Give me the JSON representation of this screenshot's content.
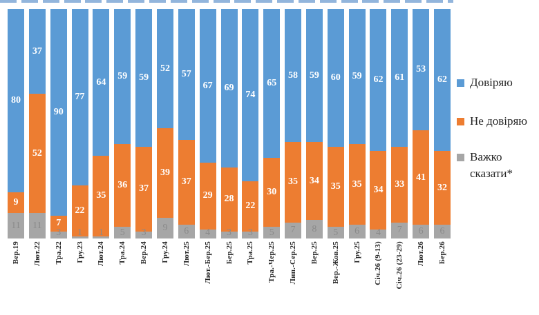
{
  "chart_data": {
    "type": "bar",
    "stacked": true,
    "orientation": "vertical",
    "title": "",
    "xlabel": "",
    "ylabel": "",
    "ylim": [
      0,
      100
    ],
    "grid": false,
    "legend_position": "right",
    "value_labels": "center",
    "categories": [
      "Вер.19",
      "Лют.22",
      "Тра.22",
      "Гру.23",
      "Лют.24",
      "Тра.24",
      "Вер.24",
      "Гру.24",
      "Лют.25",
      "Лют.-Бер.25",
      "Бер.25",
      "Тра.25",
      "Тра.-Чер.25",
      "Лип.-Сер.25",
      "Вер.25",
      "Вер.-Жов.25",
      "Гру.25",
      "Січ.26 (9-13)",
      "Січ.26 (23-29)",
      "Лют.26",
      "Бер.26"
    ],
    "series": [
      {
        "name": "Довіряю",
        "color": "#5B9BD5",
        "label_color": "#FFFFFF",
        "values": [
          80,
          37,
          90,
          77,
          64,
          59,
          59,
          52,
          57,
          67,
          69,
          74,
          65,
          58,
          59,
          60,
          59,
          62,
          61,
          53,
          62
        ]
      },
      {
        "name": "Не довіряю",
        "color": "#ED7D31",
        "label_color": "#FFFFFF",
        "values": [
          9,
          52,
          7,
          22,
          35,
          36,
          37,
          39,
          37,
          29,
          28,
          22,
          30,
          35,
          34,
          35,
          35,
          34,
          33,
          41,
          32
        ]
      },
      {
        "name": "Важко сказати*",
        "color": "#A6A6A6",
        "label_color": "#8A8A8A",
        "values": [
          11,
          11,
          3,
          1,
          1,
          5,
          3,
          9,
          6,
          4,
          3,
          3,
          5,
          7,
          8,
          5,
          6,
          4,
          7,
          6,
          6
        ]
      }
    ]
  },
  "decor": {
    "top_strip_color": "#7FA8D6"
  }
}
